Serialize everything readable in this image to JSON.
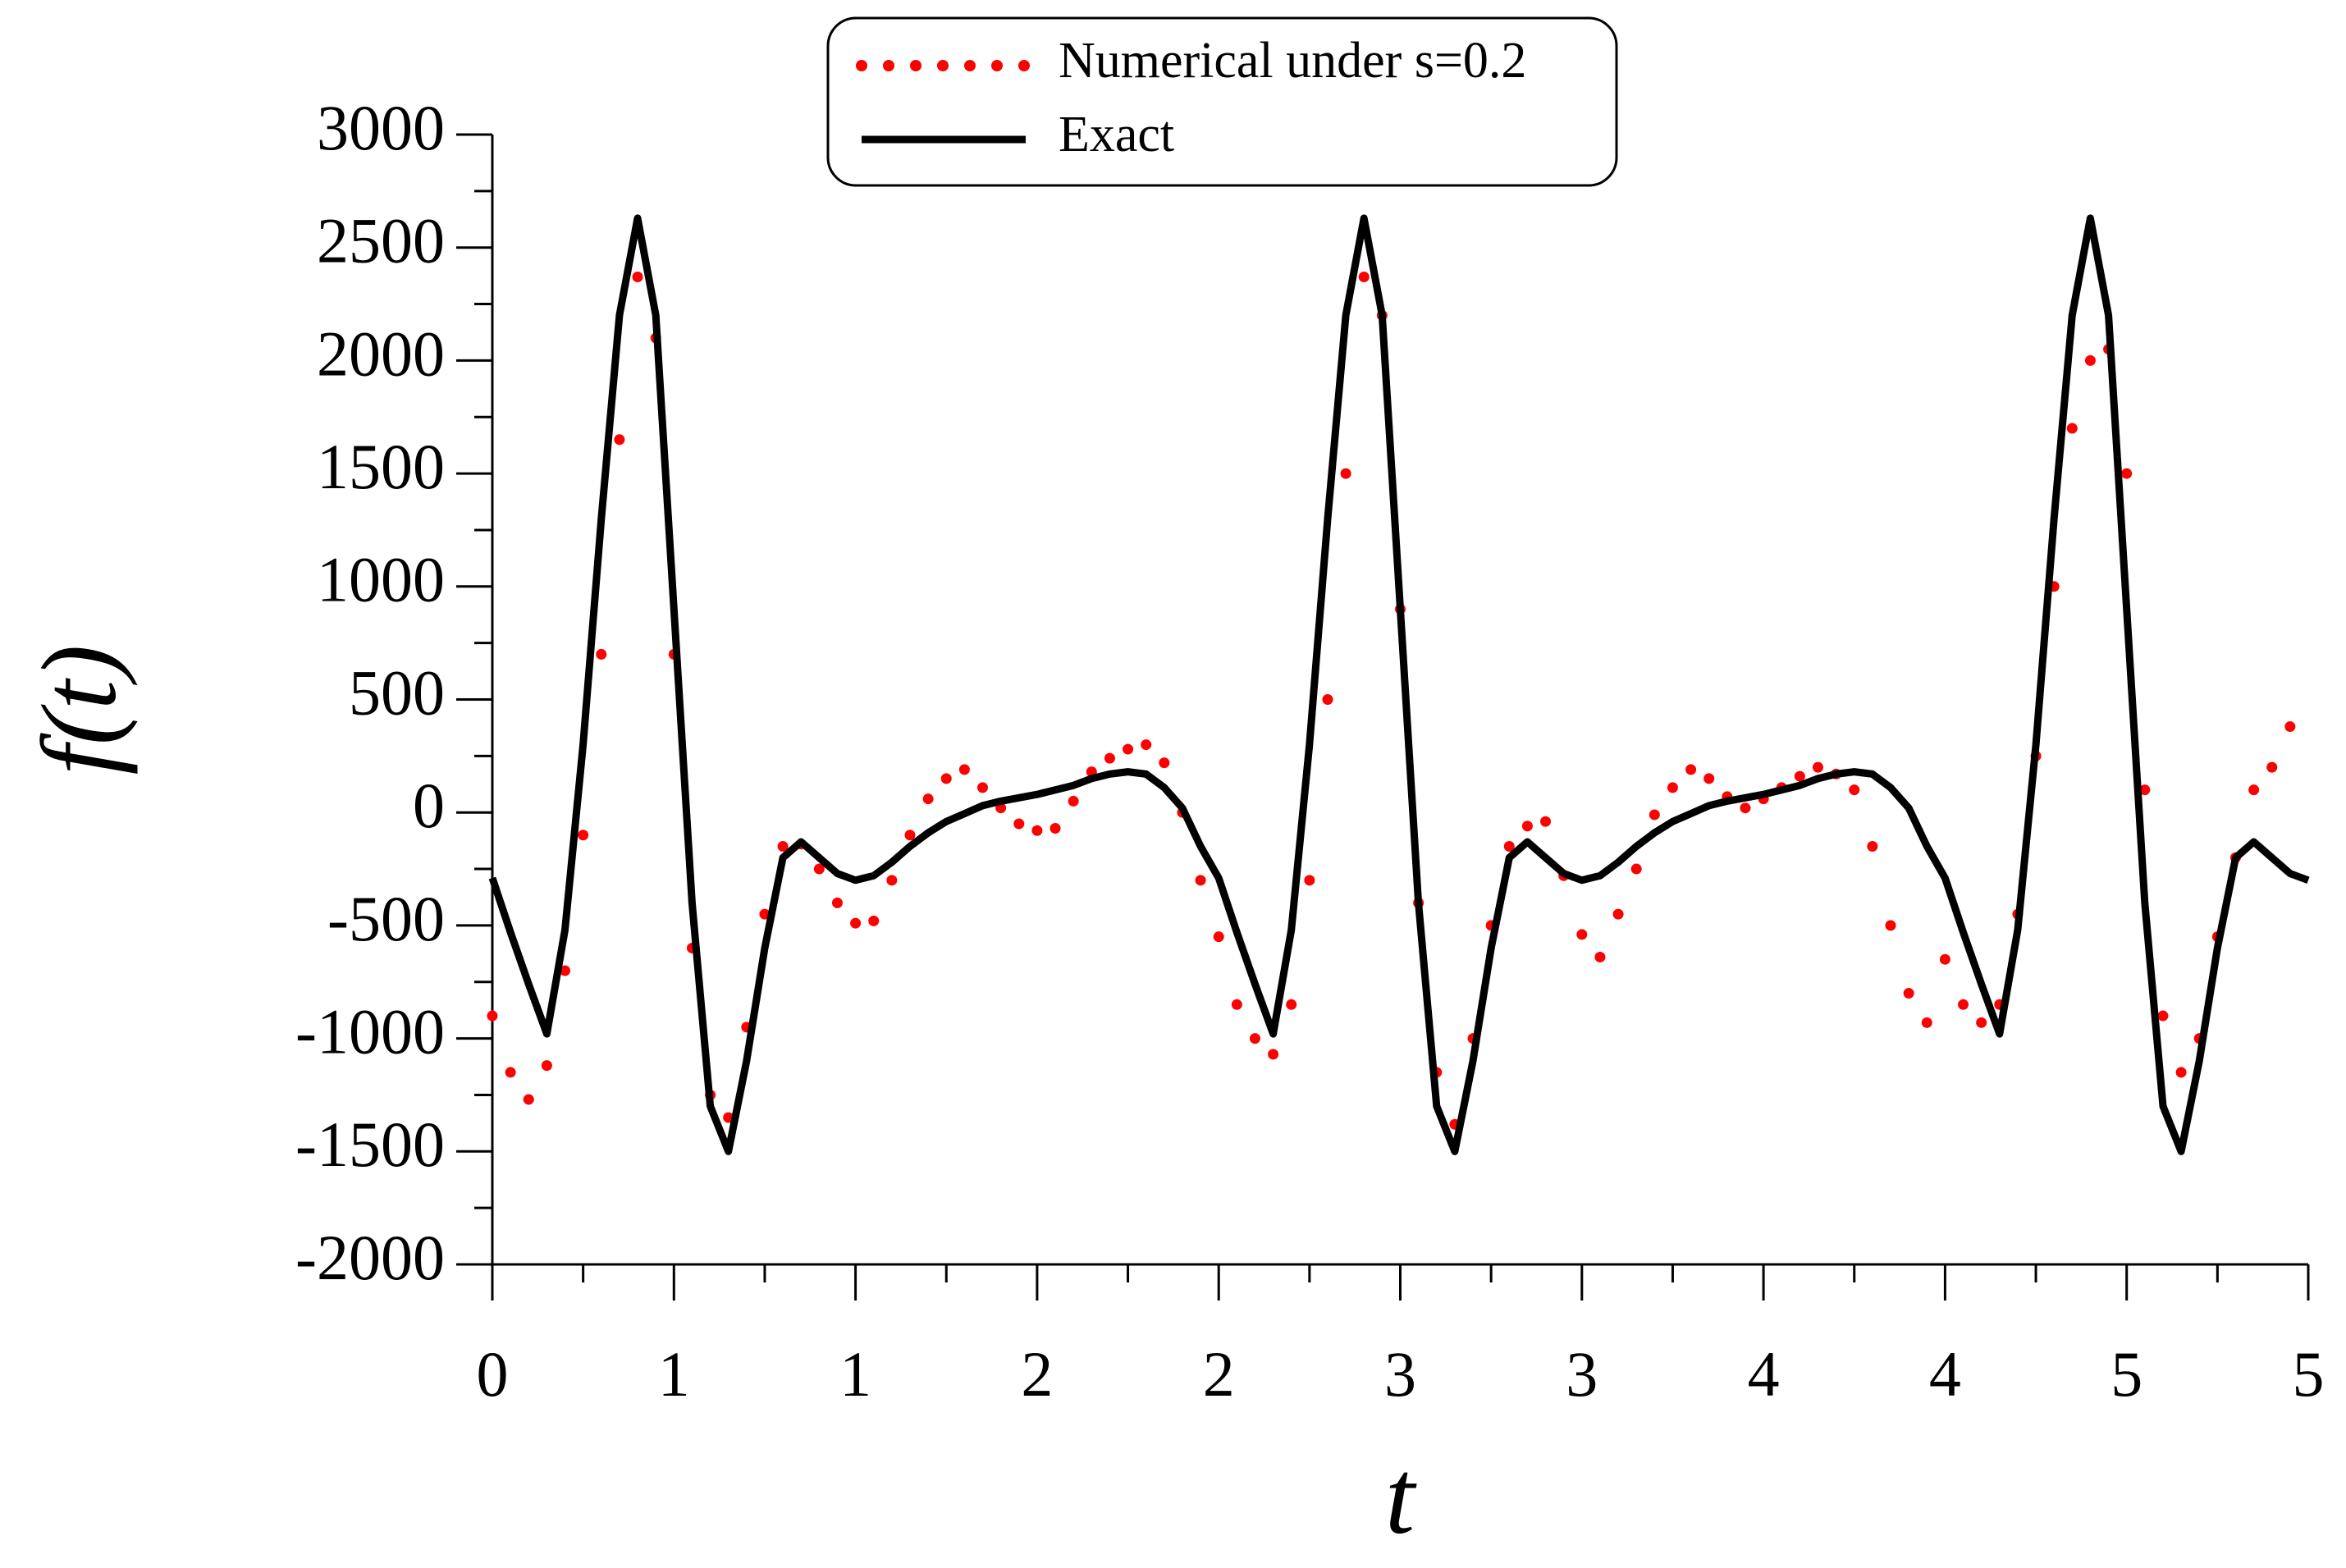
{
  "chart_data": {
    "type": "line",
    "x_label": "t",
    "y_label": "f(t)",
    "x": [
      0,
      0.05,
      0.1,
      0.15,
      0.2,
      0.25,
      0.3,
      0.35,
      0.4,
      0.45,
      0.5,
      0.55,
      0.6,
      0.65,
      0.7,
      0.75,
      0.8,
      0.85,
      0.9,
      0.95,
      1,
      1.05,
      1.1,
      1.15,
      1.2,
      1.25,
      1.3,
      1.35,
      1.4,
      1.45,
      1.5,
      1.55,
      1.6,
      1.65,
      1.7,
      1.75,
      1.8,
      1.85,
      1.9,
      1.95,
      2,
      2.05,
      2.1,
      2.15,
      2.2,
      2.25,
      2.3,
      2.35,
      2.4,
      2.45,
      2.5,
      2.55,
      2.6,
      2.65,
      2.7,
      2.75,
      2.8,
      2.85,
      2.9,
      2.95,
      3,
      3.05,
      3.1,
      3.15,
      3.2,
      3.25,
      3.3,
      3.35,
      3.4,
      3.45,
      3.5,
      3.55,
      3.6,
      3.65,
      3.7,
      3.75,
      3.8,
      3.85,
      3.9,
      3.95,
      4,
      4.05,
      4.1,
      4.15,
      4.2,
      4.25,
      4.3,
      4.35,
      4.4,
      4.45,
      4.5,
      4.55,
      4.6,
      4.65,
      4.7,
      4.75,
      4.8,
      4.85,
      4.9,
      4.95,
      5
    ],
    "series": [
      {
        "name": "Numerical under s=0.2",
        "color": "#ff0000",
        "style": "dotted",
        "values": [
          -900,
          -1150,
          -1270,
          -1120,
          -700,
          -100,
          700,
          1650,
          2370,
          2100,
          700,
          -600,
          -1250,
          -1350,
          -950,
          -450,
          -150,
          -140,
          -250,
          -400,
          -490,
          -480,
          -300,
          -100,
          60,
          150,
          190,
          110,
          20,
          -50,
          -80,
          -70,
          50,
          180,
          240,
          280,
          300,
          220,
          0,
          -300,
          -550,
          -850,
          -1000,
          -1070,
          -850,
          -300,
          500,
          1500,
          2370,
          2200,
          900,
          -400,
          -1150,
          -1380,
          -1000,
          -500,
          -150,
          -60,
          -40,
          -280,
          -540,
          -640,
          -450,
          -250,
          -10,
          110,
          190,
          150,
          70,
          20,
          60,
          110,
          160,
          200,
          170,
          100,
          -150,
          -500,
          -800,
          -930,
          -650,
          -850,
          -930,
          -850,
          -450,
          250,
          1000,
          1700,
          2000,
          2050,
          1500,
          100,
          -900,
          -1150,
          -1000,
          -550,
          -200,
          100,
          200,
          380,
          null
        ]
      },
      {
        "name": "Exact",
        "color": "#000000",
        "style": "solid",
        "values": [
          -290,
          -530,
          -760,
          -980,
          -520,
          300,
          1300,
          2200,
          2630,
          2200,
          900,
          -400,
          -1300,
          -1500,
          -1100,
          -600,
          -200,
          -130,
          -200,
          -270,
          -300,
          -280,
          -220,
          -150,
          -90,
          -40,
          -5,
          30,
          50,
          65,
          80,
          100,
          120,
          150,
          170,
          180,
          170,
          110,
          20,
          -150,
          -290,
          -530,
          -760,
          -980,
          -520,
          300,
          1300,
          2200,
          2630,
          2200,
          900,
          -400,
          -1300,
          -1500,
          -1100,
          -600,
          -200,
          -130,
          -200,
          -270,
          -300,
          -280,
          -220,
          -150,
          -90,
          -40,
          -5,
          30,
          50,
          65,
          80,
          100,
          120,
          150,
          170,
          180,
          170,
          110,
          20,
          -150,
          -290,
          -530,
          -760,
          -980,
          -520,
          300,
          1300,
          2200,
          2630,
          2200,
          900,
          -400,
          -1300,
          -1500,
          -1100,
          -600,
          -200,
          -130,
          -200,
          -270,
          -300
        ]
      }
    ],
    "xlim": [
      0,
      5
    ],
    "xticks": [
      {
        "value": 0,
        "label": "0"
      },
      {
        "value": 0.5,
        "label": "1"
      },
      {
        "value": 1,
        "label": "1"
      },
      {
        "value": 1.5,
        "label": "2"
      },
      {
        "value": 2,
        "label": "2"
      },
      {
        "value": 2.5,
        "label": "3"
      },
      {
        "value": 3,
        "label": "3"
      },
      {
        "value": 3.5,
        "label": "4"
      },
      {
        "value": 4,
        "label": "4"
      },
      {
        "value": 4.5,
        "label": "5"
      },
      {
        "value": 5,
        "label": "5"
      }
    ],
    "ylim": [
      -2000,
      3000
    ],
    "yticks": [
      -2000,
      -1500,
      -1000,
      -500,
      0,
      500,
      1000,
      1500,
      2000,
      2500,
      3000
    ],
    "legend": "top-center",
    "grid": false
  }
}
